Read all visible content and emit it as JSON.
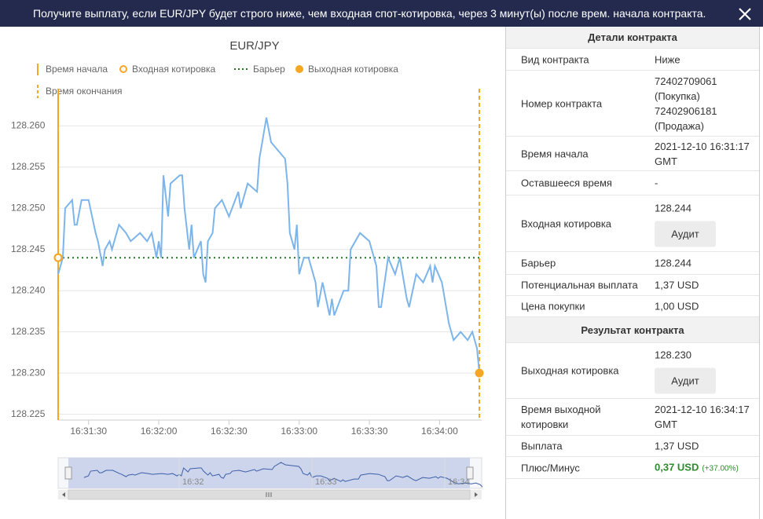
{
  "header": {
    "title": "Получите выплату, если EUR/JPY будет строго ниже, чем входная спот-котировка, через 3 минут(ы) после врем. начала контракта."
  },
  "chart_data": {
    "type": "line",
    "title": "EUR/JPY",
    "legend": [
      "Время начала",
      "Входная котировка",
      "Барьер",
      "Выходная котировка",
      "Время окончания"
    ],
    "color": "#7cb5ec",
    "marker_color": "#f5a623",
    "barrier_color": "#1f7a1f",
    "x": [
      "16:31:17",
      "16:31:19",
      "16:31:20",
      "16:31:23",
      "16:31:24",
      "16:31:25",
      "16:31:27",
      "16:31:30",
      "16:31:33",
      "16:31:34",
      "16:31:36",
      "16:31:37",
      "16:31:39",
      "16:31:40",
      "16:31:43",
      "16:31:46",
      "16:31:48",
      "16:31:52",
      "16:31:55",
      "16:31:57",
      "16:31:59",
      "16:32:00",
      "16:32:01",
      "16:32:02",
      "16:32:04",
      "16:32:05",
      "16:32:09",
      "16:32:10",
      "16:32:11",
      "16:32:13",
      "16:32:14",
      "16:32:15",
      "16:32:18",
      "16:32:19",
      "16:32:20",
      "16:32:21",
      "16:32:23",
      "16:32:24",
      "16:32:27",
      "16:32:30",
      "16:32:34",
      "16:32:35",
      "16:32:38",
      "16:32:42",
      "16:32:43",
      "16:32:46",
      "16:32:48",
      "16:32:51",
      "16:32:54",
      "16:32:55",
      "16:32:56",
      "16:32:58",
      "16:32:59",
      "16:33:00",
      "16:33:02",
      "16:33:04",
      "16:33:07",
      "16:33:08",
      "16:33:10",
      "16:33:13",
      "16:33:14",
      "16:33:15",
      "16:33:19",
      "16:33:21",
      "16:33:22",
      "16:33:26",
      "16:33:30",
      "16:33:33",
      "16:33:34",
      "16:33:35",
      "16:33:38",
      "16:33:41",
      "16:33:43",
      "16:33:46",
      "16:33:47",
      "16:33:50",
      "16:33:53",
      "16:33:56",
      "16:33:57",
      "16:33:58",
      "16:34:01",
      "16:34:04",
      "16:34:06",
      "16:34:09",
      "16:34:12",
      "16:34:14",
      "16:34:16",
      "16:34:17"
    ],
    "values": [
      128.242,
      128.244,
      128.25,
      128.251,
      128.248,
      128.248,
      128.251,
      128.251,
      128.247,
      128.246,
      128.243,
      128.245,
      128.246,
      128.245,
      128.248,
      128.247,
      128.246,
      128.247,
      128.246,
      128.247,
      128.244,
      128.246,
      128.244,
      128.254,
      128.249,
      128.253,
      128.254,
      128.254,
      128.25,
      128.245,
      128.248,
      128.244,
      128.246,
      128.242,
      128.241,
      128.246,
      128.247,
      128.25,
      128.251,
      128.249,
      128.252,
      128.25,
      128.253,
      128.252,
      128.256,
      128.261,
      128.258,
      128.257,
      128.256,
      128.253,
      128.247,
      128.245,
      128.248,
      128.242,
      128.244,
      128.244,
      128.241,
      128.238,
      128.241,
      128.237,
      128.239,
      128.237,
      128.24,
      128.24,
      128.245,
      128.247,
      128.246,
      128.243,
      128.238,
      128.238,
      128.244,
      128.242,
      128.244,
      128.239,
      128.238,
      128.242,
      128.241,
      128.243,
      128.241,
      128.243,
      128.241,
      128.236,
      128.234,
      128.235,
      128.234,
      128.235,
      128.233,
      128.23
    ],
    "xlim": [
      "16:31:17",
      "16:34:18"
    ],
    "xticks": [
      "16:31:30",
      "16:32:00",
      "16:32:30",
      "16:33:00",
      "16:33:30",
      "16:34:00"
    ],
    "ylim": [
      128.2243,
      128.2645
    ],
    "yticks": [
      128.225,
      {
        "value": 128.23,
        "label": "128.230"
      },
      128.235,
      {
        "value": 128.24,
        "label": "128.240"
      },
      128.245,
      {
        "value": 128.25,
        "label": "128.250"
      },
      128.255,
      {
        "value": 128.26,
        "label": "128.260"
      }
    ],
    "grid": true,
    "navigator_ticks": [
      "16:32",
      "16:33",
      "16:34"
    ]
  },
  "details": {
    "title": "Детали контракта",
    "rows": [
      {
        "label": "Вид контракта",
        "value": "Ниже"
      },
      {
        "label": "Номер контракта",
        "value": "72402709061 (Покупка) 72402906181 (Продажа)"
      },
      {
        "label": "Время начала",
        "value": "2021-12-10 16:31:17 GMT"
      },
      {
        "label": "Оставшееся время",
        "value": "-"
      },
      {
        "label": "Входная котировка",
        "value": "128.244",
        "button": "Аудит"
      },
      {
        "label": "Барьер",
        "value": "128.244"
      },
      {
        "label": "Потенциальная выплата",
        "value": "1,37 USD"
      },
      {
        "label": "Цена покупки",
        "value": "1,00 USD"
      }
    ]
  },
  "result": {
    "title": "Результат контракта",
    "rows": [
      {
        "label": "Выходная котировка",
        "value": "128.230",
        "button": "Аудит"
      },
      {
        "label": "Время выходной котировки",
        "value": "2021-12-10 16:34:17 GMT"
      },
      {
        "label": "Выплата",
        "value": "1,37 USD"
      },
      {
        "label": "Плюс/Минус",
        "value": "0,37 USD",
        "note": "(+37.00%)"
      }
    ]
  }
}
